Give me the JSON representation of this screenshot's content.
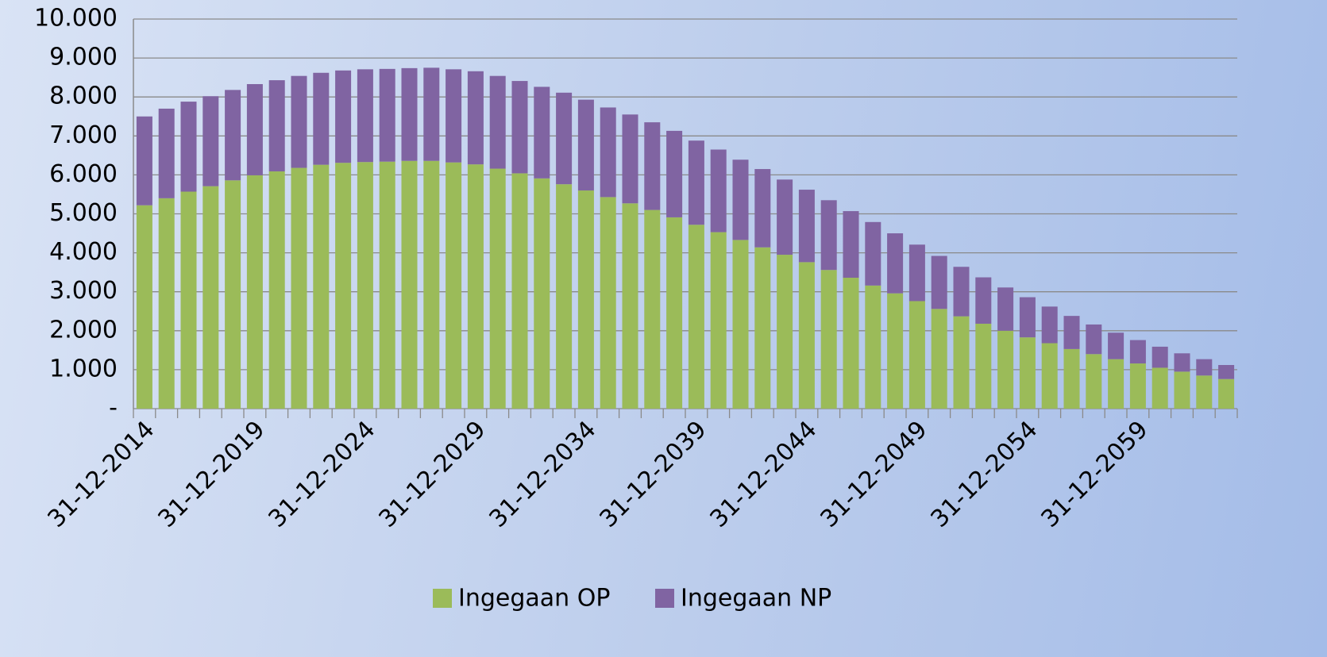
{
  "chart_data": {
    "type": "stacked_bar",
    "categories": [
      "31-12-2014",
      null,
      null,
      null,
      null,
      "31-12-2019",
      null,
      null,
      null,
      null,
      "31-12-2024",
      null,
      null,
      null,
      null,
      "31-12-2029",
      null,
      null,
      null,
      null,
      "31-12-2034",
      null,
      null,
      null,
      null,
      "31-12-2039",
      null,
      null,
      null,
      null,
      "31-12-2044",
      null,
      null,
      null,
      null,
      "31-12-2049",
      null,
      null,
      null,
      null,
      "31-12-2054",
      null,
      null,
      null,
      null,
      "31-12-2059",
      null,
      null,
      null,
      null
    ],
    "series": [
      {
        "name": "Ingegaan OP",
        "color": "#9bbb59",
        "values": [
          5220,
          5400,
          5570,
          5710,
          5860,
          5990,
          6090,
          6180,
          6260,
          6310,
          6330,
          6340,
          6360,
          6360,
          6320,
          6270,
          6160,
          6040,
          5910,
          5760,
          5600,
          5430,
          5270,
          5100,
          4910,
          4720,
          4530,
          4330,
          4140,
          3950,
          3760,
          3560,
          3360,
          3160,
          2960,
          2760,
          2560,
          2370,
          2180,
          2000,
          1830,
          1680,
          1530,
          1400,
          1270,
          1160,
          1050,
          950,
          850,
          760
        ]
      },
      {
        "name": "Ingegaan NP",
        "color": "#8064a2",
        "values": [
          2280,
          2300,
          2310,
          2310,
          2320,
          2340,
          2340,
          2360,
          2360,
          2370,
          2380,
          2380,
          2380,
          2390,
          2390,
          2390,
          2380,
          2370,
          2350,
          2350,
          2330,
          2300,
          2280,
          2250,
          2220,
          2160,
          2120,
          2060,
          2010,
          1930,
          1860,
          1790,
          1710,
          1630,
          1540,
          1450,
          1360,
          1270,
          1190,
          1110,
          1030,
          940,
          850,
          760,
          680,
          600,
          540,
          470,
          420,
          360
        ]
      }
    ],
    "ylim": [
      0,
      10000
    ],
    "yticks": [
      {
        "value": 0,
        "label": "-"
      },
      {
        "value": 1000,
        "label": "1.000"
      },
      {
        "value": 2000,
        "label": "2.000"
      },
      {
        "value": 3000,
        "label": "3.000"
      },
      {
        "value": 4000,
        "label": "4.000"
      },
      {
        "value": 5000,
        "label": "5.000"
      },
      {
        "value": 6000,
        "label": "6.000"
      },
      {
        "value": 7000,
        "label": "7.000"
      },
      {
        "value": 8000,
        "label": "8.000"
      },
      {
        "value": 9000,
        "label": "9.000"
      },
      {
        "value": 10000,
        "label": "10.000"
      }
    ],
    "grid": true,
    "legend": "bottom"
  }
}
